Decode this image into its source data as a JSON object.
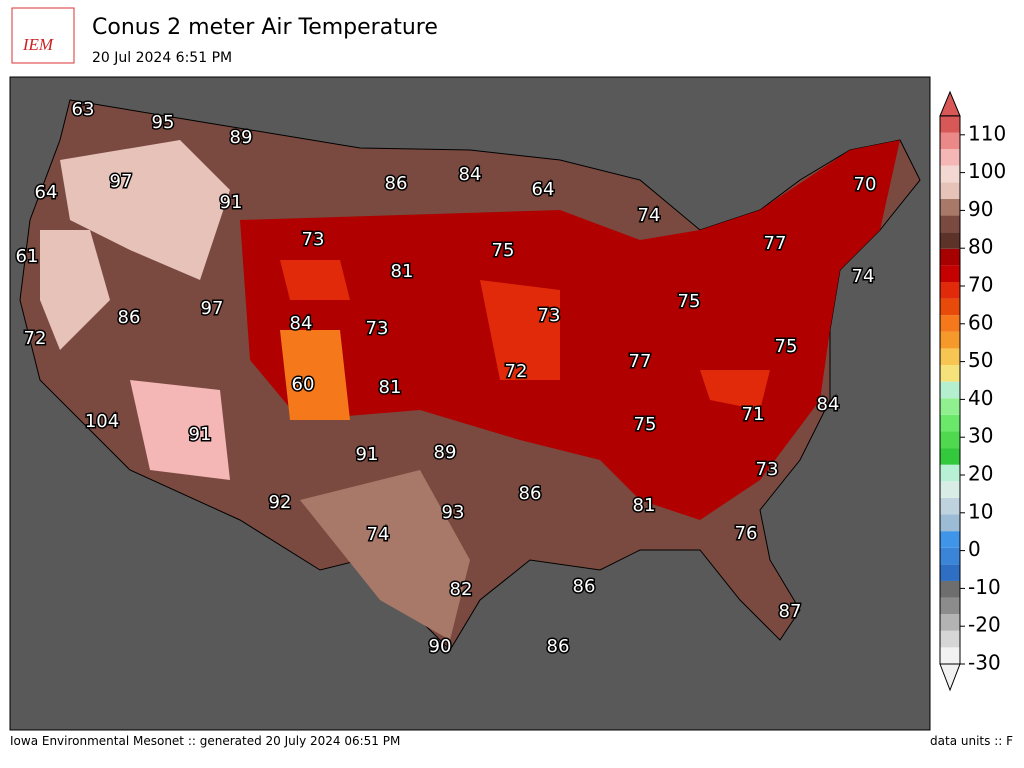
{
  "header": {
    "logo": "IEM",
    "title": "Conus 2 meter Air Temperature",
    "subtitle": "20 Jul 2024 6:51 PM"
  },
  "map": {
    "labels": [
      63,
      95,
      89,
      64,
      97,
      91,
      86,
      84,
      64,
      70,
      74,
      73,
      75,
      77,
      61,
      81,
      74,
      86,
      97,
      84,
      73,
      73,
      75,
      72,
      75,
      77,
      72,
      60,
      81,
      71,
      84,
      104,
      91,
      75,
      91,
      89,
      73,
      86,
      92,
      93,
      81,
      74,
      76,
      86,
      82,
      87,
      90,
      86
    ]
  },
  "colorbar": {
    "ticks": [
      -30,
      -20,
      -10,
      0,
      10,
      20,
      30,
      40,
      50,
      60,
      70,
      80,
      90,
      100,
      110
    ],
    "limits": [
      -30,
      115
    ],
    "colors": [
      "#f2f2f2",
      "#d6d6d6",
      "#b3b3b3",
      "#8c8c8c",
      "#6e6e6e",
      "#2e6fc4",
      "#3a85d8",
      "#3f95e8",
      "#9bbcd4",
      "#bfd3df",
      "#d9ede6",
      "#b7f0d5",
      "#34c93c",
      "#4fd94f",
      "#6ae86a",
      "#90f090",
      "#b4f0d0",
      "#f5e27a",
      "#f7c552",
      "#f59a2a",
      "#f5781a",
      "#e84a0a",
      "#e02a0a",
      "#c50000",
      "#a60000",
      "#5c3229",
      "#7a4a40",
      "#a87868",
      "#e6c2b8",
      "#f2d8d0",
      "#f5b6b6",
      "#eb8888",
      "#d85858"
    ]
  },
  "footer": {
    "left": "Iowa Environmental Mesonet :: generated 20 July 2024 06:51 PM",
    "right": "data units :: F"
  }
}
